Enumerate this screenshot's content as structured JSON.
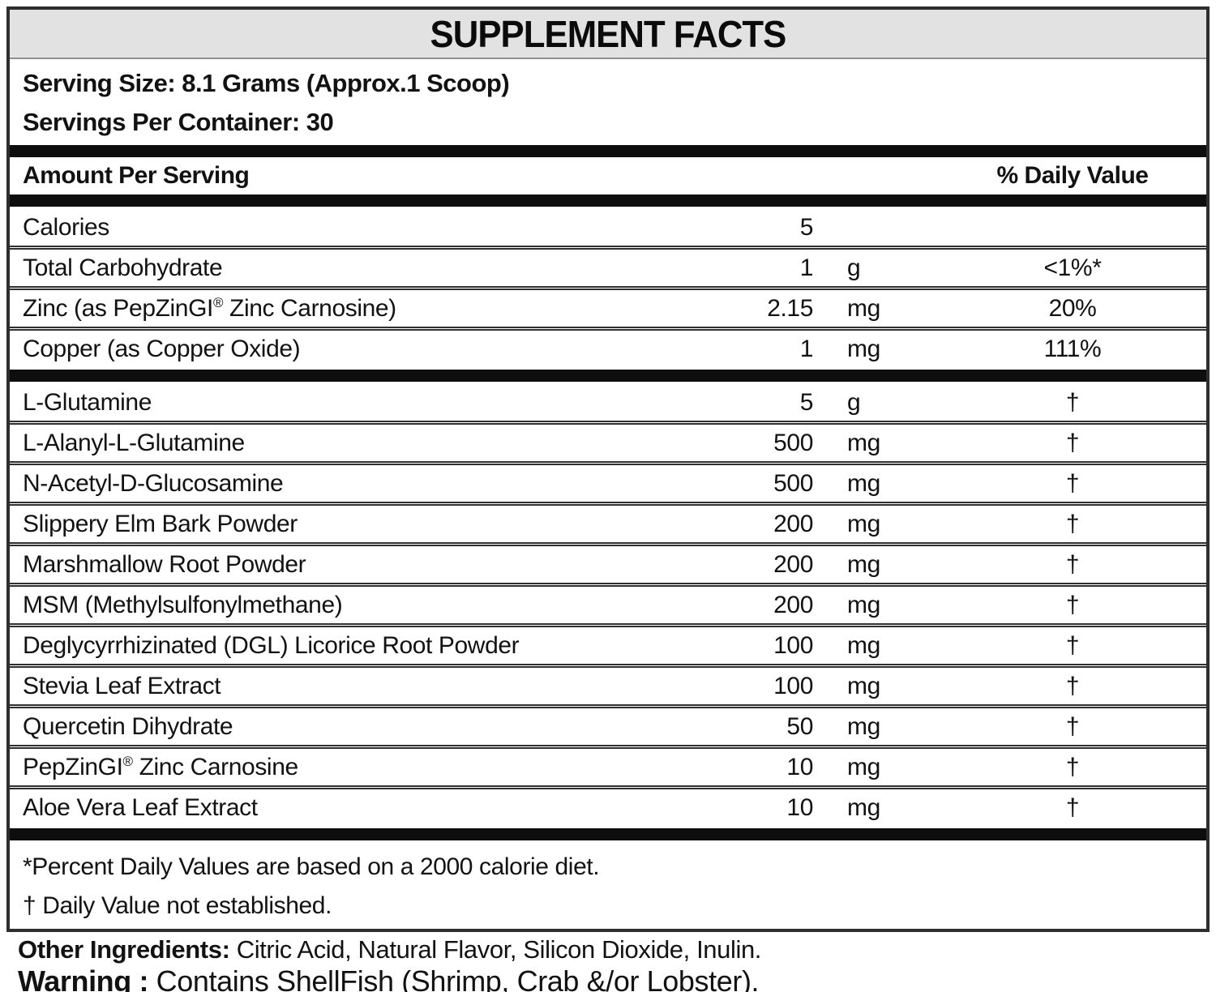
{
  "label": {
    "title": "SUPPLEMENT FACTS",
    "serving_size": "Serving Size: 8.1 Grams (Approx.1 Scoop)",
    "servings_per_container": "Servings Per Container: 30",
    "columns": {
      "amount_header": "Amount Per Serving",
      "dv_header": "% Daily Value"
    },
    "sections": [
      {
        "rows": [
          {
            "name": "Calories",
            "amount": "5",
            "unit": "",
            "dv": ""
          },
          {
            "name": "Total Carbohydrate",
            "amount": "1",
            "unit": "g",
            "dv": "<1%*"
          },
          {
            "name": "Zinc (as PepZinGI® Zinc Carnosine)",
            "amount": "2.15",
            "unit": "mg",
            "dv": "20%"
          },
          {
            "name": "Copper (as Copper Oxide)",
            "amount": "1",
            "unit": "mg",
            "dv": "111%"
          }
        ]
      },
      {
        "rows": [
          {
            "name": "L-Glutamine",
            "amount": "5",
            "unit": "g",
            "dv": "†"
          },
          {
            "name": "L-Alanyl-L-Glutamine",
            "amount": "500",
            "unit": "mg",
            "dv": "†"
          },
          {
            "name": "N-Acetyl-D-Glucosamine",
            "amount": "500",
            "unit": "mg",
            "dv": "†"
          },
          {
            "name": "Slippery Elm Bark Powder",
            "amount": "200",
            "unit": "mg",
            "dv": "†"
          },
          {
            "name": "Marshmallow Root Powder",
            "amount": "200",
            "unit": "mg",
            "dv": "†"
          },
          {
            "name": "MSM (Methylsulfonylmethane)",
            "amount": "200",
            "unit": "mg",
            "dv": "†"
          },
          {
            "name": "Deglycyrrhizinated (DGL) Licorice Root Powder",
            "amount": "100",
            "unit": "mg",
            "dv": "†"
          },
          {
            "name": "Stevia Leaf Extract",
            "amount": "100",
            "unit": "mg",
            "dv": "†"
          },
          {
            "name": "Quercetin Dihydrate",
            "amount": "50",
            "unit": "mg",
            "dv": "†"
          },
          {
            "name": "PepZinGI® Zinc Carnosine",
            "amount": "10",
            "unit": "mg",
            "dv": "†"
          },
          {
            "name": "Aloe Vera Leaf Extract",
            "amount": "10",
            "unit": "mg",
            "dv": "†"
          }
        ]
      }
    ],
    "footnotes": [
      "*Percent Daily Values are based on a 2000 calorie diet.",
      "† Daily Value not established."
    ],
    "other_ingredients": {
      "label": "Other Ingredients:",
      "text": " Citric Acid, Natural Flavor, Silicon Dioxide, Inulin."
    },
    "warning": {
      "label": "Warning :",
      "text": " Contains ShellFish (Shrimp, Crab &/or Lobster)."
    }
  },
  "colors": {
    "divider_bar": "#0e0e0e",
    "title_band_bg": "#e2e2e2",
    "outer_border": "#2e2e2e",
    "text": "#121212"
  }
}
